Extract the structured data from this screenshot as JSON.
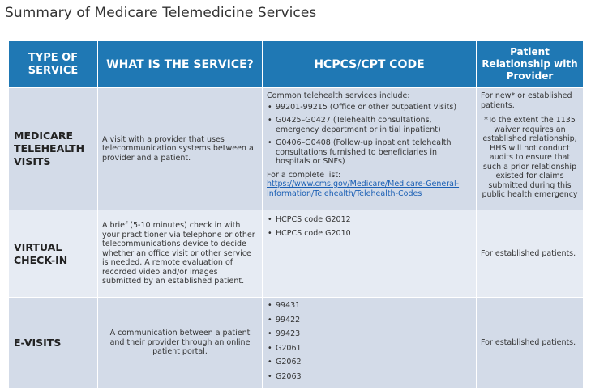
{
  "title": "Summary of Medicare Telemedicine Services",
  "headers": {
    "type": "TYPE OF SERVICE",
    "what": "WHAT IS THE SERVICE?",
    "code": "HCPCS/CPT CODE",
    "relationship": "Patient Relationship with Provider"
  },
  "rows": [
    {
      "type": "MEDICARE TELEHEALTH VISITS",
      "description": "A visit with a provider that uses telecommunication systems between a provider and a patient.",
      "code_intro": "Common telehealth services include:",
      "codes": [
        "99201-99215 (Office or other outpatient visits)",
        "G0425–G0427 (Telehealth consultations, emergency department or initial inpatient)",
        "G0406–G0408 (Follow-up inpatient telehealth consultations furnished to beneficiaries in hospitals or SNFs)"
      ],
      "code_list_label": "For a complete list:",
      "code_link": "https://www.cms.gov/Medicare/Medicare-General-Information/Telehealth/Telehealth-Codes",
      "relationship": "For new* or established patients.",
      "relationship_note": "*To the extent the 1135 waiver requires an established relationship, HHS will not conduct audits to ensure that such a prior relationship existed for claims submitted during this public health emergency"
    },
    {
      "type": "VIRTUAL CHECK-IN",
      "description": "A brief (5-10 minutes) check in with your practitioner via telephone or other telecommunications device to decide whether an office visit or other service is needed. A remote evaluation of recorded video and/or images submitted by an established patient.",
      "codes": [
        "HCPCS code G2012",
        "HCPCS code G2010"
      ],
      "relationship": "For established patients."
    },
    {
      "type": "E-VISITS",
      "description": "A communication between a patient and their provider through an online patient portal.",
      "codes": [
        "99431",
        "99422",
        "99423",
        "G2061",
        "G2062",
        "G2063"
      ],
      "relationship": "For established patients."
    }
  ]
}
